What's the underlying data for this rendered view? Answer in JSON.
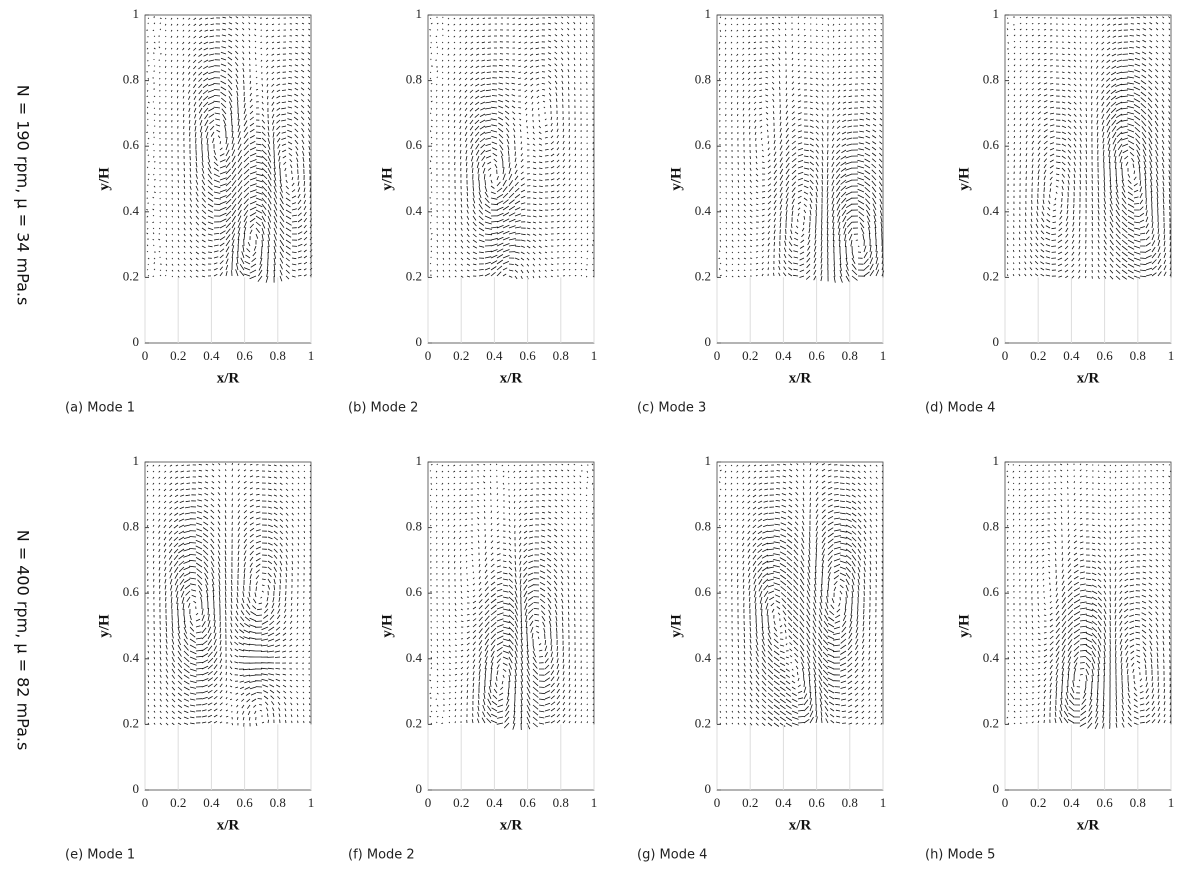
{
  "row_labels": [
    "N = 190 rpm, μ = 34 mPa.s",
    "N = 400 rpm, μ = 82 mPa.s"
  ],
  "axes": {
    "xlim": [
      0,
      1
    ],
    "ylim": [
      0,
      1
    ],
    "xticks": [
      0,
      0.2,
      0.4,
      0.6,
      0.8,
      1
    ],
    "yticks": [
      0,
      0.2,
      0.4,
      0.6,
      0.8,
      1
    ]
  },
  "panels": [
    {
      "caption": "(a) Mode 1",
      "x_label": "x/R",
      "y_label": "y/H"
    },
    {
      "caption": "(b) Mode 2",
      "x_label": "x/R",
      "y_label": "y/H"
    },
    {
      "caption": "(c) Mode 3",
      "x_label": "x/R",
      "y_label": "y/H"
    },
    {
      "caption": "(d) Mode 4",
      "x_label": "x/R",
      "y_label": "y/H"
    },
    {
      "caption": "(e) Mode 1",
      "x_label": "x/R",
      "y_label": "y/H"
    },
    {
      "caption": "(f) Mode 2",
      "x_label": "x/R",
      "y_label": "y/H"
    },
    {
      "caption": "(g) Mode 4",
      "x_label": "x/R",
      "y_label": "y/H"
    },
    {
      "caption": "(h) Mode 5",
      "x_label": "x/R",
      "y_label": "y/H"
    }
  ]
}
